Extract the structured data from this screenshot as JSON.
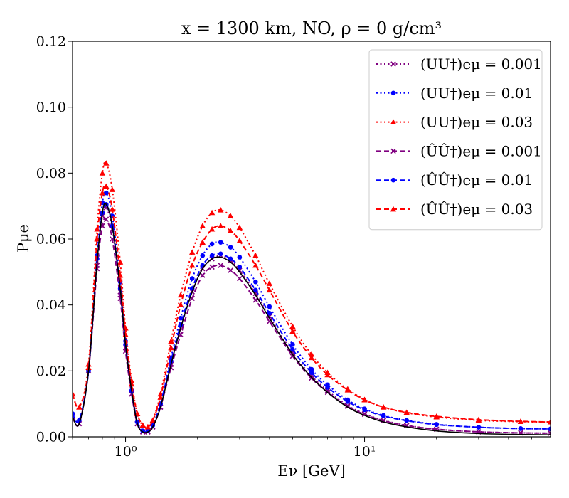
{
  "chart_data": {
    "type": "line",
    "title": "x = 1300 km, NO, ρ = 0 g/cm³",
    "xlabel": "Eν [GeV]",
    "ylabel": "Pμe",
    "xscale": "log",
    "xlim": [
      0.6,
      60
    ],
    "ylim": [
      0,
      0.12
    ],
    "grid": false,
    "legend_position": "top-right",
    "xticks": [
      {
        "value": 1,
        "label": "10⁰"
      },
      {
        "value": 10,
        "label": "10¹"
      }
    ],
    "yticks": [
      {
        "value": 0.0,
        "label": "0.00"
      },
      {
        "value": 0.02,
        "label": "0.02"
      },
      {
        "value": 0.04,
        "label": "0.04"
      },
      {
        "value": 0.06,
        "label": "0.06"
      },
      {
        "value": 0.08,
        "label": "0.08"
      },
      {
        "value": 0.1,
        "label": "0.10"
      },
      {
        "value": 0.12,
        "label": "0.12"
      }
    ],
    "x": [
      0.6,
      0.64,
      0.7,
      0.76,
      0.8,
      0.83,
      0.88,
      0.95,
      1.0,
      1.06,
      1.12,
      1.18,
      1.24,
      1.3,
      1.4,
      1.55,
      1.7,
      1.9,
      2.1,
      2.3,
      2.5,
      2.75,
      3.0,
      3.5,
      4.0,
      5.0,
      6.0,
      7.0,
      8.5,
      10.0,
      12.0,
      15.0,
      20.0,
      30.0,
      45.0,
      60.0
    ],
    "series": [
      {
        "name": "",
        "color": "#000000",
        "style": "solid",
        "marker": "none",
        "values": [
          0.006,
          0.004,
          0.02,
          0.053,
          0.068,
          0.0705,
          0.064,
          0.045,
          0.028,
          0.014,
          0.004,
          0.0015,
          0.0015,
          0.003,
          0.009,
          0.022,
          0.033,
          0.044,
          0.051,
          0.054,
          0.0545,
          0.053,
          0.05,
          0.043,
          0.036,
          0.025,
          0.018,
          0.0135,
          0.009,
          0.0065,
          0.0045,
          0.003,
          0.0018,
          0.001,
          0.0007,
          0.0006
        ]
      },
      {
        "name": "(UU†)eμ = 0.001",
        "color": "#800080",
        "style": "dotted",
        "marker": "x",
        "values": [
          0.006,
          0.004,
          0.02,
          0.052,
          0.067,
          0.0695,
          0.063,
          0.044,
          0.027,
          0.013,
          0.004,
          0.0015,
          0.0015,
          0.003,
          0.009,
          0.022,
          0.033,
          0.044,
          0.051,
          0.054,
          0.055,
          0.0535,
          0.0505,
          0.0435,
          0.0365,
          0.0255,
          0.0185,
          0.014,
          0.0095,
          0.007,
          0.005,
          0.0035,
          0.0023,
          0.0015,
          0.0012,
          0.0011
        ]
      },
      {
        "name": "(UU†)eμ = 0.01",
        "color": "#0000ff",
        "style": "dotted",
        "marker": "circle",
        "values": [
          0.007,
          0.005,
          0.02,
          0.055,
          0.071,
          0.074,
          0.067,
          0.047,
          0.029,
          0.014,
          0.0045,
          0.0018,
          0.0018,
          0.0035,
          0.01,
          0.024,
          0.036,
          0.048,
          0.055,
          0.0585,
          0.059,
          0.0575,
          0.0545,
          0.047,
          0.0395,
          0.028,
          0.0205,
          0.0158,
          0.0112,
          0.0085,
          0.0065,
          0.005,
          0.0038,
          0.0029,
          0.0025,
          0.0024
        ]
      },
      {
        "name": "(UU†)eμ = 0.03",
        "color": "#ff0000",
        "style": "dotted",
        "marker": "triangle",
        "values": [
          0.013,
          0.009,
          0.022,
          0.063,
          0.08,
          0.083,
          0.075,
          0.053,
          0.033,
          0.017,
          0.007,
          0.0035,
          0.003,
          0.005,
          0.013,
          0.029,
          0.043,
          0.056,
          0.064,
          0.068,
          0.0688,
          0.067,
          0.0635,
          0.055,
          0.0465,
          0.0335,
          0.025,
          0.0195,
          0.0145,
          0.0113,
          0.009,
          0.0073,
          0.006,
          0.005,
          0.0046,
          0.0045
        ]
      },
      {
        "name": "(ÛÛ†)eμ = 0.001",
        "color": "#800080",
        "style": "dashed",
        "marker": "x",
        "values": [
          0.006,
          0.004,
          0.02,
          0.051,
          0.064,
          0.066,
          0.06,
          0.042,
          0.026,
          0.013,
          0.004,
          0.0015,
          0.0015,
          0.003,
          0.009,
          0.021,
          0.031,
          0.042,
          0.049,
          0.0515,
          0.052,
          0.0505,
          0.048,
          0.0415,
          0.035,
          0.0245,
          0.0178,
          0.0135,
          0.0092,
          0.0068,
          0.0049,
          0.0034,
          0.0023,
          0.0015,
          0.0012,
          0.0011
        ]
      },
      {
        "name": "(ÛÛ†)eμ = 0.01",
        "color": "#0000ff",
        "style": "dashed",
        "marker": "circle",
        "values": [
          0.007,
          0.005,
          0.02,
          0.054,
          0.068,
          0.0705,
          0.064,
          0.045,
          0.028,
          0.014,
          0.0045,
          0.0018,
          0.0018,
          0.0035,
          0.01,
          0.023,
          0.034,
          0.045,
          0.052,
          0.055,
          0.0555,
          0.054,
          0.0515,
          0.0445,
          0.0375,
          0.0265,
          0.0195,
          0.015,
          0.0107,
          0.0082,
          0.0063,
          0.0049,
          0.0037,
          0.0029,
          0.0025,
          0.0024
        ]
      },
      {
        "name": "(ÛÛ†)eμ = 0.03",
        "color": "#ff0000",
        "style": "dashed",
        "marker": "triangle",
        "values": [
          0.013,
          0.009,
          0.021,
          0.06,
          0.074,
          0.076,
          0.069,
          0.049,
          0.031,
          0.016,
          0.007,
          0.0035,
          0.003,
          0.005,
          0.012,
          0.027,
          0.04,
          0.052,
          0.059,
          0.063,
          0.064,
          0.0625,
          0.0595,
          0.052,
          0.0445,
          0.032,
          0.024,
          0.0188,
          0.0142,
          0.0112,
          0.009,
          0.0074,
          0.0062,
          0.0052,
          0.0047,
          0.0045
        ]
      }
    ]
  }
}
